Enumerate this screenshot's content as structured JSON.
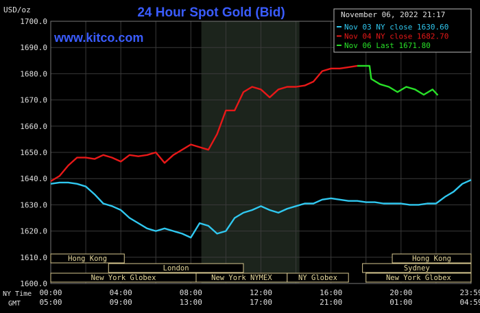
{
  "chart_data": {
    "type": "line",
    "title": "24 Hour Spot Gold (Bid)",
    "ylabel": "USD/oz",
    "watermark": "www.kitco.com",
    "timestamp": "November 06, 2022 21:17",
    "ylim": [
      1600,
      1700
    ],
    "y_ticks": [
      "1700.0",
      "1690.0",
      "1680.0",
      "1670.0",
      "1660.0",
      "1650.0",
      "1640.0",
      "1630.0",
      "1620.0",
      "1610.0",
      "1600.0"
    ],
    "x_tick_labels": [
      "00:00",
      "04:00",
      "08:00",
      "12:00",
      "16:00",
      "20:00",
      "23:59"
    ],
    "ny_time_label": "NY Time",
    "gmt_label": "GMT",
    "gmt_tick_labels": [
      "05:00",
      "09:00",
      "13:00",
      "17:00",
      "21:00",
      "01:00",
      "04:59"
    ],
    "grid": true,
    "legend_position": "top-right",
    "colors": {
      "nov03": "#30c8f0",
      "nov04": "#e81818",
      "nov06": "#28e028",
      "title": "#3a5cff",
      "grid": "#3a3a3a",
      "shade": "#1c241c"
    },
    "legend": [
      {
        "label": "Nov 03 NY close 1630.60",
        "color": "#30c8f0"
      },
      {
        "label": "Nov 04 NY close 1682.70",
        "color": "#e81818"
      },
      {
        "label": "Nov 06 Last 1671.80",
        "color": "#28e028"
      }
    ],
    "shaded_hours": [
      8.6,
      14.2
    ],
    "series": [
      {
        "color": "#30c8f0",
        "x": [
          0,
          0.5,
          1,
          1.5,
          2,
          2.5,
          3,
          3.5,
          4,
          4.5,
          5,
          5.5,
          6,
          6.5,
          7,
          7.5,
          8,
          8.5,
          9,
          9.5,
          10,
          10.5,
          11,
          11.5,
          12,
          12.5,
          13,
          13.5,
          14,
          14.5,
          15,
          15.5,
          16,
          16.5,
          17,
          17.5,
          18,
          18.5,
          19,
          19.5,
          20,
          20.5,
          21,
          21.5,
          22,
          22.5,
          23,
          23.5,
          24
        ],
        "values": [
          1638,
          1638.5,
          1638.5,
          1638,
          1637,
          1634,
          1630.5,
          1629.5,
          1628,
          1625,
          1623,
          1621,
          1620,
          1621,
          1620,
          1619,
          1617.5,
          1623,
          1622,
          1619,
          1620,
          1625,
          1627,
          1628,
          1629.5,
          1628,
          1627,
          1628.5,
          1629.5,
          1630.5,
          1630.5,
          1632,
          1632.5,
          1632,
          1631.5,
          1631.5,
          1631,
          1631,
          1630.5,
          1630.5,
          1630.5,
          1630,
          1630,
          1630.5,
          1630.5,
          1633,
          1635,
          1638,
          1639.5
        ]
      },
      {
        "color": "#e81818",
        "x": [
          0,
          0.5,
          1,
          1.5,
          2,
          2.5,
          3,
          3.5,
          4,
          4.5,
          5,
          5.5,
          6,
          6.5,
          7,
          7.5,
          8,
          8.5,
          9,
          9.5,
          10,
          10.5,
          11,
          11.5,
          12,
          12.5,
          13,
          13.5,
          14,
          14.5,
          15,
          15.5,
          16,
          16.5,
          17,
          17.5
        ],
        "values": [
          1639,
          1641,
          1645,
          1648,
          1648,
          1647.5,
          1649,
          1648,
          1646.5,
          1649,
          1648.5,
          1649,
          1650,
          1646,
          1649,
          1651,
          1653,
          1652,
          1651,
          1657,
          1666,
          1666,
          1673,
          1675,
          1674,
          1671,
          1674,
          1675,
          1675,
          1675.5,
          1677,
          1681,
          1682,
          1682,
          1682.5,
          1683
        ]
      },
      {
        "color": "#28e028",
        "x": [
          17.5,
          18.2,
          18.3,
          18.8,
          19.3,
          19.8,
          20.3,
          20.8,
          21.3,
          21.8,
          22.1
        ],
        "values": [
          1683,
          1683,
          1678,
          1676,
          1675,
          1673,
          1675,
          1674,
          1672,
          1674,
          1671.8
        ]
      }
    ],
    "sessions": [
      {
        "label": "Hong Kong",
        "start": 0,
        "end": 4.2
      },
      {
        "label": "Hong Kong",
        "start": 19.5,
        "end": 24
      },
      {
        "label": "London",
        "start": 3.3,
        "end": 11
      },
      {
        "label": "Sydney",
        "start": 17.8,
        "end": 24
      },
      {
        "label": "New York Globex",
        "start": 0,
        "end": 8.3
      },
      {
        "label": "New York NYMEX",
        "start": 8.3,
        "end": 13.5
      },
      {
        "label": "NY Globex",
        "start": 13.5,
        "end": 17
      },
      {
        "label": "New York Globex",
        "start": 18,
        "end": 24
      }
    ]
  }
}
